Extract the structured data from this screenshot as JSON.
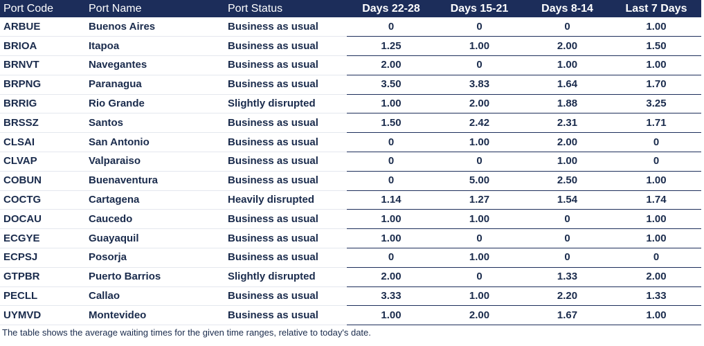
{
  "table": {
    "headers": [
      "Port Code",
      "Port Name",
      "Port Status",
      "Days 22-28",
      "Days 15-21",
      "Days 8-14",
      "Last 7 Days"
    ],
    "rows": [
      {
        "code": "ARBUE",
        "name": "Buenos Aires",
        "status": "Business as usual",
        "d22_28": "0",
        "d15_21": "0",
        "d8_14": "0",
        "last7": "1.00"
      },
      {
        "code": "BRIOA",
        "name": "Itapoa",
        "status": "Business as usual",
        "d22_28": "1.25",
        "d15_21": "1.00",
        "d8_14": "2.00",
        "last7": "1.50"
      },
      {
        "code": "BRNVT",
        "name": "Navegantes",
        "status": "Business as usual",
        "d22_28": "2.00",
        "d15_21": "0",
        "d8_14": "1.00",
        "last7": "1.00"
      },
      {
        "code": "BRPNG",
        "name": "Paranagua",
        "status": "Business as usual",
        "d22_28": "3.50",
        "d15_21": "3.83",
        "d8_14": "1.64",
        "last7": "1.70"
      },
      {
        "code": "BRRIG",
        "name": "Rio Grande",
        "status": "Slightly disrupted",
        "d22_28": "1.00",
        "d15_21": "2.00",
        "d8_14": "1.88",
        "last7": "3.25"
      },
      {
        "code": "BRSSZ",
        "name": "Santos",
        "status": "Business as usual",
        "d22_28": "1.50",
        "d15_21": "2.42",
        "d8_14": "2.31",
        "last7": "1.71"
      },
      {
        "code": "CLSAI",
        "name": "San Antonio",
        "status": "Business as usual",
        "d22_28": "0",
        "d15_21": "1.00",
        "d8_14": "2.00",
        "last7": "0"
      },
      {
        "code": "CLVAP",
        "name": "Valparaiso",
        "status": "Business as usual",
        "d22_28": "0",
        "d15_21": "0",
        "d8_14": "1.00",
        "last7": "0"
      },
      {
        "code": "COBUN",
        "name": "Buenaventura",
        "status": "Business as usual",
        "d22_28": "0",
        "d15_21": "5.00",
        "d8_14": "2.50",
        "last7": "1.00"
      },
      {
        "code": "COCTG",
        "name": "Cartagena",
        "status": "Heavily disrupted",
        "d22_28": "1.14",
        "d15_21": "1.27",
        "d8_14": "1.54",
        "last7": "1.74"
      },
      {
        "code": "DOCAU",
        "name": "Caucedo",
        "status": "Business as usual",
        "d22_28": "1.00",
        "d15_21": "1.00",
        "d8_14": "0",
        "last7": "1.00"
      },
      {
        "code": "ECGYE",
        "name": "Guayaquil",
        "status": "Business as usual",
        "d22_28": "1.00",
        "d15_21": "0",
        "d8_14": "0",
        "last7": "1.00"
      },
      {
        "code": "ECPSJ",
        "name": "Posorja",
        "status": "Business as usual",
        "d22_28": "0",
        "d15_21": "1.00",
        "d8_14": "0",
        "last7": "0"
      },
      {
        "code": "GTPBR",
        "name": "Puerto Barrios",
        "status": "Slightly disrupted",
        "d22_28": "2.00",
        "d15_21": "0",
        "d8_14": "1.33",
        "last7": "2.00"
      },
      {
        "code": "PECLL",
        "name": "Callao",
        "status": "Business as usual",
        "d22_28": "3.33",
        "d15_21": "1.00",
        "d8_14": "2.20",
        "last7": "1.33"
      },
      {
        "code": "UYMVD",
        "name": "Montevideo",
        "status": "Business as usual",
        "d22_28": "1.00",
        "d15_21": "2.00",
        "d8_14": "1.67",
        "last7": "1.00"
      }
    ]
  },
  "footnote": "The table shows the average waiting times for the given time ranges, relative to today's date.",
  "colors": {
    "header_bg": "#1c2d5a",
    "header_text": "#ffffff",
    "body_text": "#1a2b4c"
  }
}
